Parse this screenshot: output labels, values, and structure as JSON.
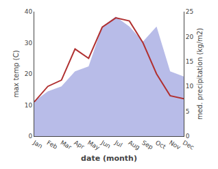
{
  "chart_data": {
    "type": "line",
    "categories": [
      "Jan",
      "Feb",
      "Mar",
      "Apr",
      "May",
      "Jun",
      "Jul",
      "Aug",
      "Sep",
      "Oct",
      "Nov",
      "Dec"
    ],
    "series": [
      {
        "type": "line",
        "color": "#b03030",
        "values": [
          11,
          16,
          18,
          28,
          25,
          35,
          38,
          37,
          30,
          20,
          13,
          12
        ]
      },
      {
        "type": "area",
        "color": "#b8bce8",
        "axis": "y2",
        "values": [
          7,
          9,
          10,
          13,
          14,
          22,
          24,
          22,
          19,
          22,
          13,
          12
        ]
      }
    ],
    "xlabel": "date (month)",
    "ylabel": "max temp (C)",
    "y2label": "med. precipitation (kg/m2)",
    "ylim": [
      0,
      40
    ],
    "yticks": [
      0,
      10,
      20,
      30,
      40
    ],
    "y2lim": [
      0,
      25
    ],
    "y2ticks": [
      0,
      5,
      10,
      15,
      20,
      25
    ],
    "grid": false
  }
}
